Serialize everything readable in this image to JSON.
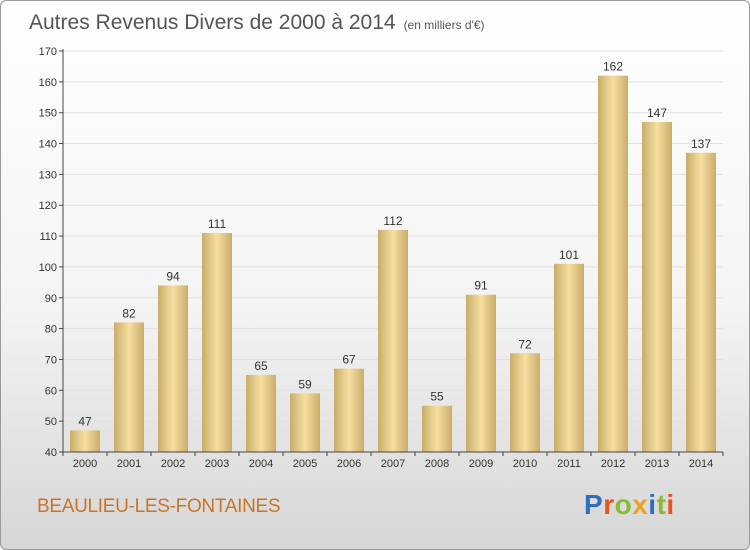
{
  "header": {
    "title": "Autres Revenus Divers de 2000 à 2014",
    "unit": "(en milliers d'€)"
  },
  "footer": {
    "city": "BEAULIEU-LES-FONTAINES",
    "logo": "Proxiti",
    "logo_colors": [
      "#2e6fc0",
      "#e8531e",
      "#8bbb2e",
      "#f0a020",
      "#2e6fc0",
      "#8bbb2e",
      "#e8531e"
    ]
  },
  "colors": {
    "bar_light": "#f7dfa0",
    "bar_dark": "#c9ad6a",
    "grid": "#e2e2e2",
    "axis": "#444444"
  },
  "chart_data": {
    "type": "bar",
    "title": "Autres Revenus Divers de 2000 à 2014",
    "xlabel": "",
    "ylabel": "",
    "categories": [
      "2000",
      "2001",
      "2002",
      "2003",
      "2004",
      "2005",
      "2006",
      "2007",
      "2008",
      "2009",
      "2010",
      "2011",
      "2012",
      "2013",
      "2014"
    ],
    "values": [
      47,
      82,
      94,
      111,
      65,
      59,
      67,
      112,
      55,
      91,
      72,
      101,
      162,
      147,
      137
    ],
    "ylim": [
      40,
      170
    ],
    "yticks": [
      40,
      50,
      60,
      70,
      80,
      90,
      100,
      110,
      120,
      130,
      140,
      150,
      160,
      170
    ],
    "grid": true,
    "data_labels": true
  }
}
